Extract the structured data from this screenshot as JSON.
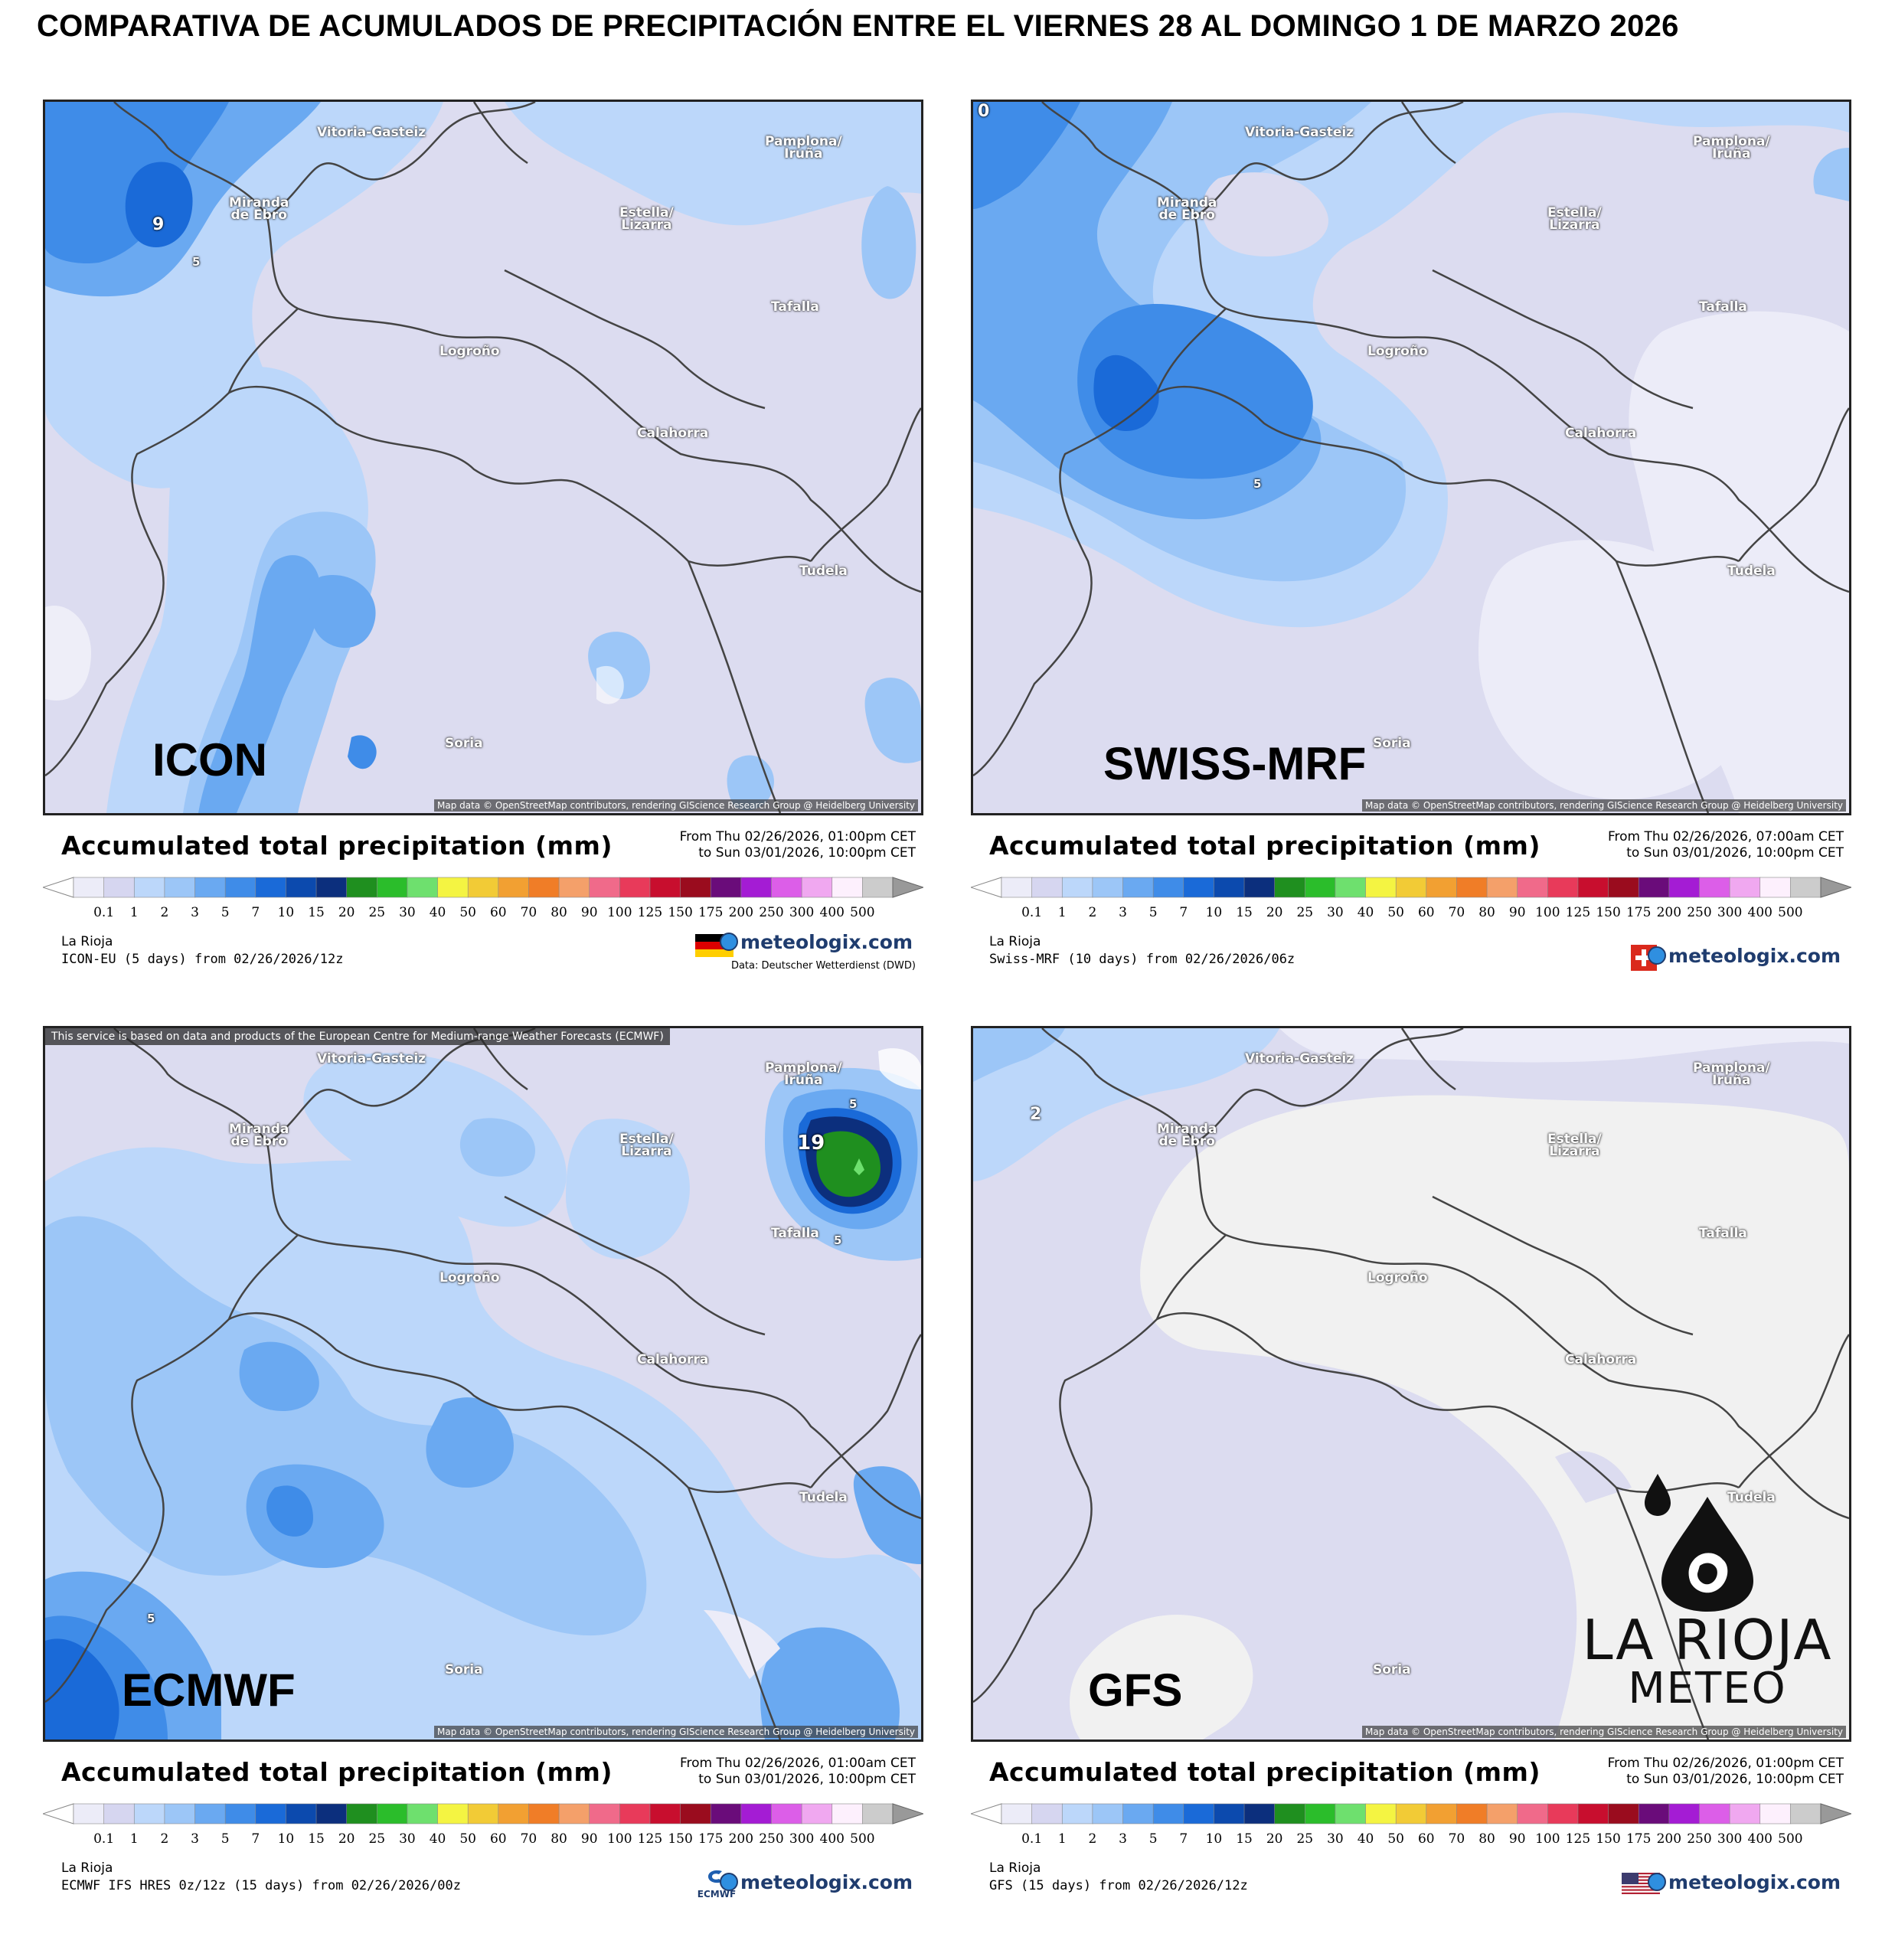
{
  "title": "COMPARATIVA DE ACUMULADOS DE PRECIPITACIÓN ENTRE EL VIERNES 28 AL DOMINGO 1 DE MARZO 2026",
  "legend": {
    "title": "Accumulated total precipitation (mm)",
    "ticks": [
      "0.1",
      "1",
      "2",
      "3",
      "5",
      "7",
      "10",
      "15",
      "20",
      "25",
      "30",
      "40",
      "50",
      "60",
      "70",
      "80",
      "90",
      "100",
      "125",
      "150",
      "175",
      "200",
      "250",
      "300",
      "400",
      "500"
    ],
    "colors": [
      "#ececf8",
      "#d6d6f0",
      "#bcd7fa",
      "#9cc6f7",
      "#6aa9f1",
      "#3f8ce8",
      "#1a6ad8",
      "#0c4aae",
      "#0c2f7d",
      "#1f8f1f",
      "#2bbd2b",
      "#6ee06e",
      "#f4f442",
      "#f2cb36",
      "#f2a032",
      "#f07d27",
      "#f4a06a",
      "#f06a8a",
      "#e83a5a",
      "#c80e2e",
      "#9a0c1e",
      "#6a0c7a",
      "#a41cd4",
      "#dc5ee8",
      "#f0a8f0",
      "#fdf0fd",
      "#cccccc"
    ]
  },
  "attribution": "Map data © OpenStreetMap contributors, rendering GIScience Research Group @ Heidelberg University",
  "ecmwf_notice": "This service is based on data and products of the European Centre for Medium-range Weather Forecasts (ECMWF)",
  "brand": "meteologix.com",
  "cities": {
    "vitoria": "Vitoria-Gasteiz",
    "pamplona1": "Pamplona/",
    "pamplona2": "Iruña",
    "miranda1": "Miranda",
    "miranda2": "de Ebro",
    "estella1": "Estella/",
    "estella2": "Lizarra",
    "tafalla": "Tafalla",
    "logrono": "Logroño",
    "calahorra": "Calahorra",
    "tudela": "Tudela",
    "soria": "Soria"
  },
  "panels": [
    {
      "label": "ICON",
      "period_from": "From Thu 02/26/2026, 01:00pm CET",
      "period_to": "to Sun 03/01/2026, 10:00pm CET",
      "region": "La Rioja",
      "model_run": "ICON-EU (5 days) from 02/26/2026/12z",
      "data_source": "Data: Deutscher Wetterdienst (DWD)",
      "flag": "germany-flag",
      "values": [
        "9",
        "5"
      ]
    },
    {
      "label": "SWISS-MRF",
      "period_from": "From Thu 02/26/2026, 07:00am CET",
      "period_to": "to Sun 03/01/2026, 10:00pm CET",
      "region": "La Rioja",
      "model_run": "Swiss-MRF (10 days) from 02/26/2026/06z",
      "flag": "switzerland-flag",
      "values": [
        "0",
        "5"
      ]
    },
    {
      "label": "ECMWF",
      "period_from": "From Thu 02/26/2026, 01:00am CET",
      "period_to": "to Sun 03/01/2026, 10:00pm CET",
      "region": "La Rioja",
      "model_run": "ECMWF IFS HRES 0z/12z (15 days) from 02/26/2026/00z",
      "flag": "ecmwf-logo",
      "flag_text": "ECMWF",
      "values": [
        "19",
        "5",
        "5",
        "5"
      ]
    },
    {
      "label": "GFS",
      "period_from": "From Thu 02/26/2026, 01:00pm CET",
      "period_to": "to Sun 03/01/2026, 10:00pm CET",
      "region": "La Rioja",
      "model_run": "GFS (15 days) from 02/26/2026/12z",
      "flag": "usa-flag",
      "values": [
        "2"
      ]
    }
  ],
  "logo": {
    "line1": "LA RIOJA",
    "line2": "METEO"
  }
}
